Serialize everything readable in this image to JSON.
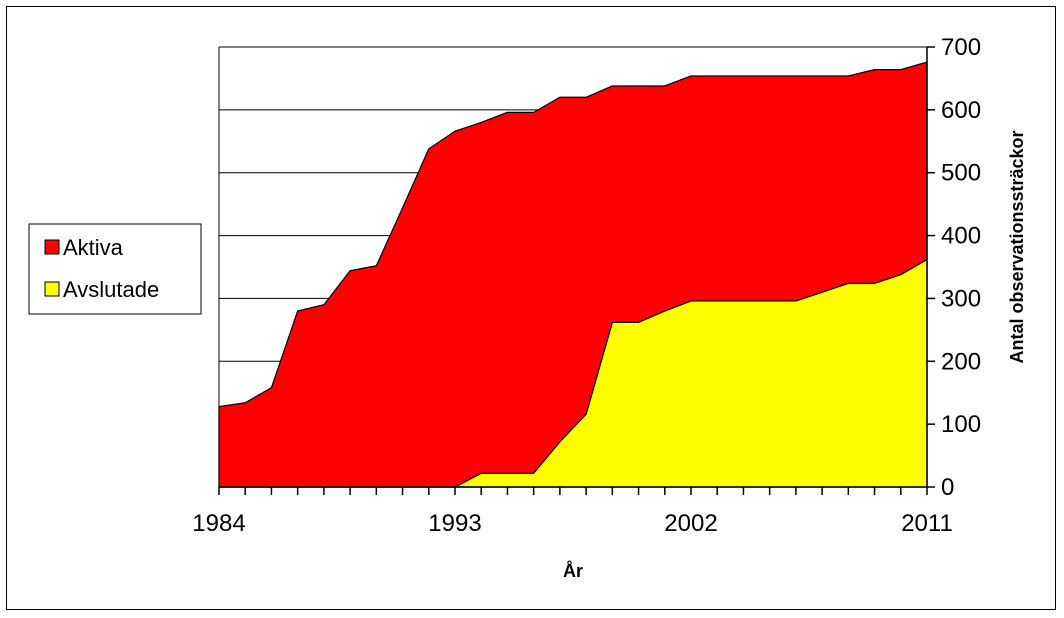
{
  "chart_data": {
    "type": "area",
    "stacked": true,
    "x": [
      1984,
      1985,
      1986,
      1987,
      1988,
      1989,
      1990,
      1991,
      1992,
      1993,
      1994,
      1995,
      1996,
      1997,
      1998,
      1999,
      2000,
      2001,
      2002,
      2003,
      2004,
      2005,
      2006,
      2007,
      2008,
      2009,
      2010,
      2011
    ],
    "series": [
      {
        "name": "Avslutade",
        "color": "#ffff00",
        "values": [
          0,
          0,
          0,
          0,
          0,
          0,
          0,
          0,
          0,
          0,
          22,
          22,
          22,
          72,
          116,
          262,
          262,
          280,
          296,
          296,
          296,
          296,
          296,
          310,
          324,
          324,
          338,
          362
        ]
      },
      {
        "name": "Aktiva",
        "color": "#ff0000",
        "values": [
          128,
          134,
          158,
          280,
          290,
          344,
          352,
          444,
          538,
          566,
          558,
          574,
          574,
          548,
          504,
          376,
          376,
          358,
          358,
          358,
          358,
          358,
          358,
          344,
          330,
          340,
          326,
          314
        ]
      }
    ],
    "xticks": [
      "1984",
      "1993",
      "2002",
      "2011"
    ],
    "xtick_values": [
      1984,
      1993,
      2002,
      2011
    ],
    "yticks": [
      "0",
      "100",
      "200",
      "300",
      "400",
      "500",
      "600",
      "700"
    ],
    "xlabel": "År",
    "ylabel": "Antal observationssträckor",
    "ylim": [
      0,
      700
    ],
    "xlim": [
      1984,
      2011
    ],
    "y_axis_side": "right",
    "grid": "horizontal",
    "legend": {
      "placement": "left",
      "entries": [
        {
          "label": "Aktiva",
          "color": "#ff0000"
        },
        {
          "label": "Avslutade",
          "color": "#ffff00"
        }
      ]
    }
  }
}
